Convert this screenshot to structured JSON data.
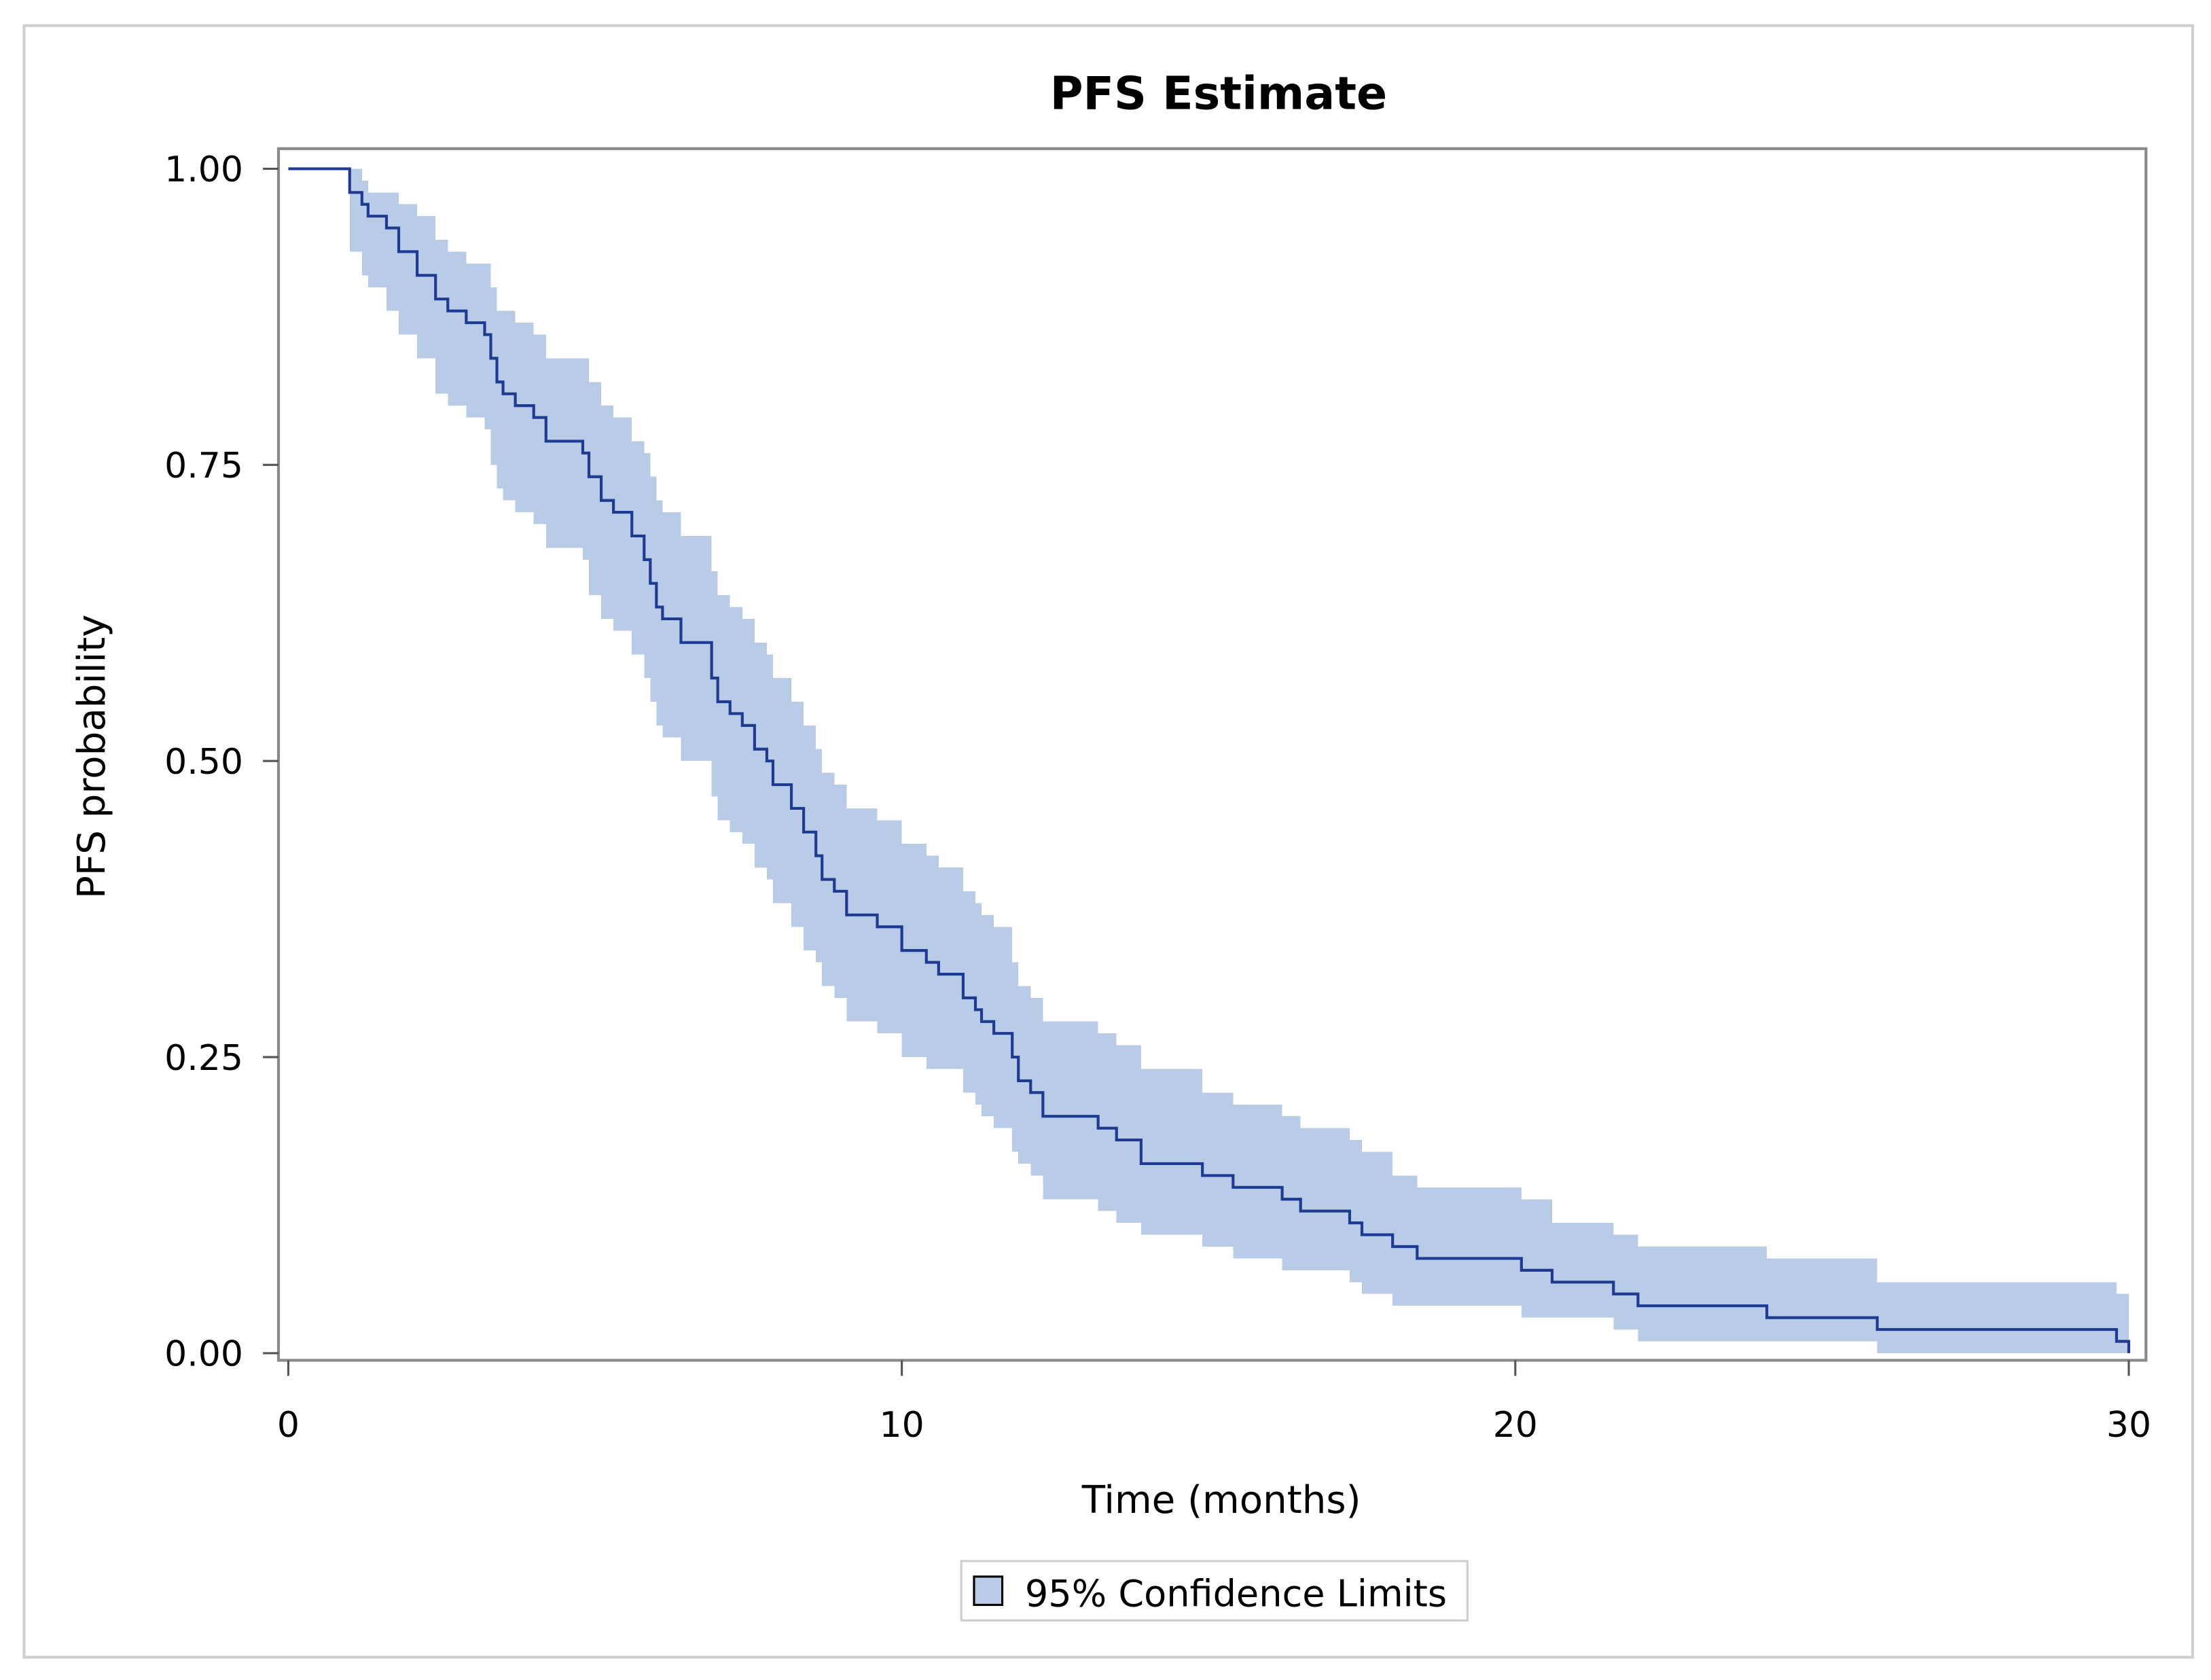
{
  "chart_data": {
    "type": "step",
    "title": "PFS Estimate",
    "x_label": "Time (months)",
    "y_label": "PFS probability",
    "band_label": "95% Confidence Limits",
    "line_color": "#1f3a93",
    "band_color": "#b8cce8",
    "grid": false,
    "xlim": [
      -0.16,
      30.28
    ],
    "ylim": [
      -0.006,
      1.017
    ],
    "xticks": [
      0,
      10,
      20,
      30
    ],
    "yticks": [
      {
        "value": 0,
        "label": "0.00"
      },
      {
        "value": 0.25,
        "label": "0.25"
      },
      {
        "value": 0.5,
        "label": "0.50"
      },
      {
        "value": 0.75,
        "label": "0.75"
      },
      {
        "value": 1,
        "label": "1.00"
      }
    ],
    "x": [
      0,
      1.0,
      1.2,
      1.3,
      1.6,
      1.8,
      2.1,
      2.4,
      2.6,
      2.9,
      3.2,
      3.3,
      3.4,
      3.5,
      3.7,
      4.0,
      4.2,
      4.8,
      4.9,
      5.1,
      5.3,
      5.6,
      5.8,
      5.9,
      6.0,
      6.1,
      6.4,
      6.9,
      7.0,
      7.2,
      7.4,
      7.6,
      7.8,
      7.9,
      8.2,
      8.4,
      8.6,
      8.7,
      8.9,
      9.1,
      9.6,
      10.0,
      10.4,
      10.6,
      11.0,
      11.2,
      11.3,
      11.5,
      11.8,
      11.9,
      12.1,
      12.3,
      13.2,
      13.5,
      13.9,
      14.9,
      15.4,
      16.2,
      16.5,
      17.3,
      17.5,
      18.0,
      18.4,
      20.1,
      20.6,
      21.6,
      22.0,
      24.1,
      25.9,
      29.8,
      30.0
    ],
    "values": [
      1,
      0.98,
      0.97,
      0.96,
      0.95,
      0.93,
      0.91,
      0.89,
      0.88,
      0.87,
      0.86,
      0.84,
      0.82,
      0.81,
      0.8,
      0.79,
      0.77,
      0.76,
      0.74,
      0.72,
      0.71,
      0.69,
      0.67,
      0.65,
      0.63,
      0.62,
      0.6,
      0.57,
      0.55,
      0.54,
      0.53,
      0.51,
      0.5,
      0.48,
      0.46,
      0.44,
      0.42,
      0.4,
      0.39,
      0.37,
      0.36,
      0.34,
      0.33,
      0.32,
      0.3,
      0.29,
      0.28,
      0.27,
      0.25,
      0.23,
      0.22,
      0.2,
      0.19,
      0.18,
      0.16,
      0.15,
      0.14,
      0.13,
      0.12,
      0.11,
      0.1,
      0.09,
      0.08,
      0.07,
      0.06,
      0.05,
      0.04,
      0.03,
      0.02,
      0.01,
      0.0
    ],
    "lower": [
      1,
      0.93,
      0.91,
      0.9,
      0.88,
      0.86,
      0.84,
      0.81,
      0.8,
      0.79,
      0.78,
      0.75,
      0.73,
      0.72,
      0.71,
      0.7,
      0.68,
      0.67,
      0.64,
      0.62,
      0.61,
      0.59,
      0.57,
      0.55,
      0.53,
      0.52,
      0.5,
      0.47,
      0.45,
      0.44,
      0.43,
      0.41,
      0.4,
      0.38,
      0.36,
      0.34,
      0.33,
      0.31,
      0.3,
      0.28,
      0.27,
      0.25,
      0.24,
      0.24,
      0.22,
      0.21,
      0.2,
      0.19,
      0.17,
      0.16,
      0.15,
      0.13,
      0.12,
      0.11,
      0.1,
      0.09,
      0.08,
      0.07,
      0.07,
      0.06,
      0.05,
      0.04,
      0.04,
      0.03,
      0.03,
      0.02,
      0.01,
      0.01,
      0.0,
      0.0,
      null
    ],
    "upper": [
      1,
      1.0,
      0.99,
      0.98,
      0.98,
      0.97,
      0.96,
      0.94,
      0.93,
      0.92,
      0.92,
      0.9,
      0.88,
      0.88,
      0.87,
      0.86,
      0.84,
      0.84,
      0.82,
      0.8,
      0.79,
      0.77,
      0.76,
      0.74,
      0.72,
      0.71,
      0.69,
      0.66,
      0.64,
      0.63,
      0.62,
      0.6,
      0.59,
      0.57,
      0.55,
      0.53,
      0.51,
      0.49,
      0.48,
      0.46,
      0.45,
      0.43,
      0.42,
      0.41,
      0.39,
      0.38,
      0.37,
      0.36,
      0.33,
      0.31,
      0.3,
      0.28,
      0.27,
      0.26,
      0.24,
      0.22,
      0.21,
      0.2,
      0.19,
      0.18,
      0.17,
      0.15,
      0.14,
      0.13,
      0.11,
      0.1,
      0.09,
      0.08,
      0.06,
      0.05,
      null
    ]
  }
}
